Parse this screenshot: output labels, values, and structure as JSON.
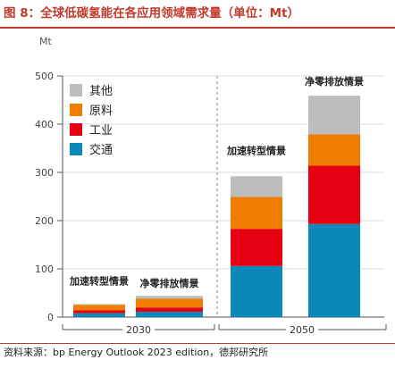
{
  "header": {
    "title": "图 8：全球低碳氢能在各应用领域需求量（单位：Mt）"
  },
  "footer": {
    "source": "资料来源：bp Energy Outlook 2023 edition，德邦研究所"
  },
  "colors": {
    "其他": "#bdbdbd",
    "原料": "#f07d00",
    "工业": "#e60012",
    "交通": "#0a89b8"
  },
  "chart_data": {
    "type": "bar",
    "stacked": true,
    "ylabel": "Mt",
    "ylim": [
      0,
      500
    ],
    "yticks": [
      0,
      100,
      200,
      300,
      400,
      500
    ],
    "legend_position": "top-left",
    "groups": [
      {
        "name": "2030",
        "bars": [
          {
            "label": "加速转型情景",
            "values": {
              "交通": 8,
              "工业": 6,
              "原料": 11,
              "其他": 2
            }
          },
          {
            "label": "净零排放情景",
            "values": {
              "交通": 11,
              "工业": 9,
              "原料": 18,
              "其他": 6
            }
          }
        ]
      },
      {
        "name": "2050",
        "bars": [
          {
            "label": "加速转型情景",
            "values": {
              "交通": 106,
              "工业": 77,
              "原料": 66,
              "其他": 43
            }
          },
          {
            "label": "净零排放情景",
            "values": {
              "交通": 193,
              "工业": 121,
              "原料": 65,
              "其他": 80
            }
          }
        ]
      }
    ],
    "series": [
      {
        "name": "其他"
      },
      {
        "name": "原料"
      },
      {
        "name": "工业"
      },
      {
        "name": "交通"
      }
    ]
  }
}
